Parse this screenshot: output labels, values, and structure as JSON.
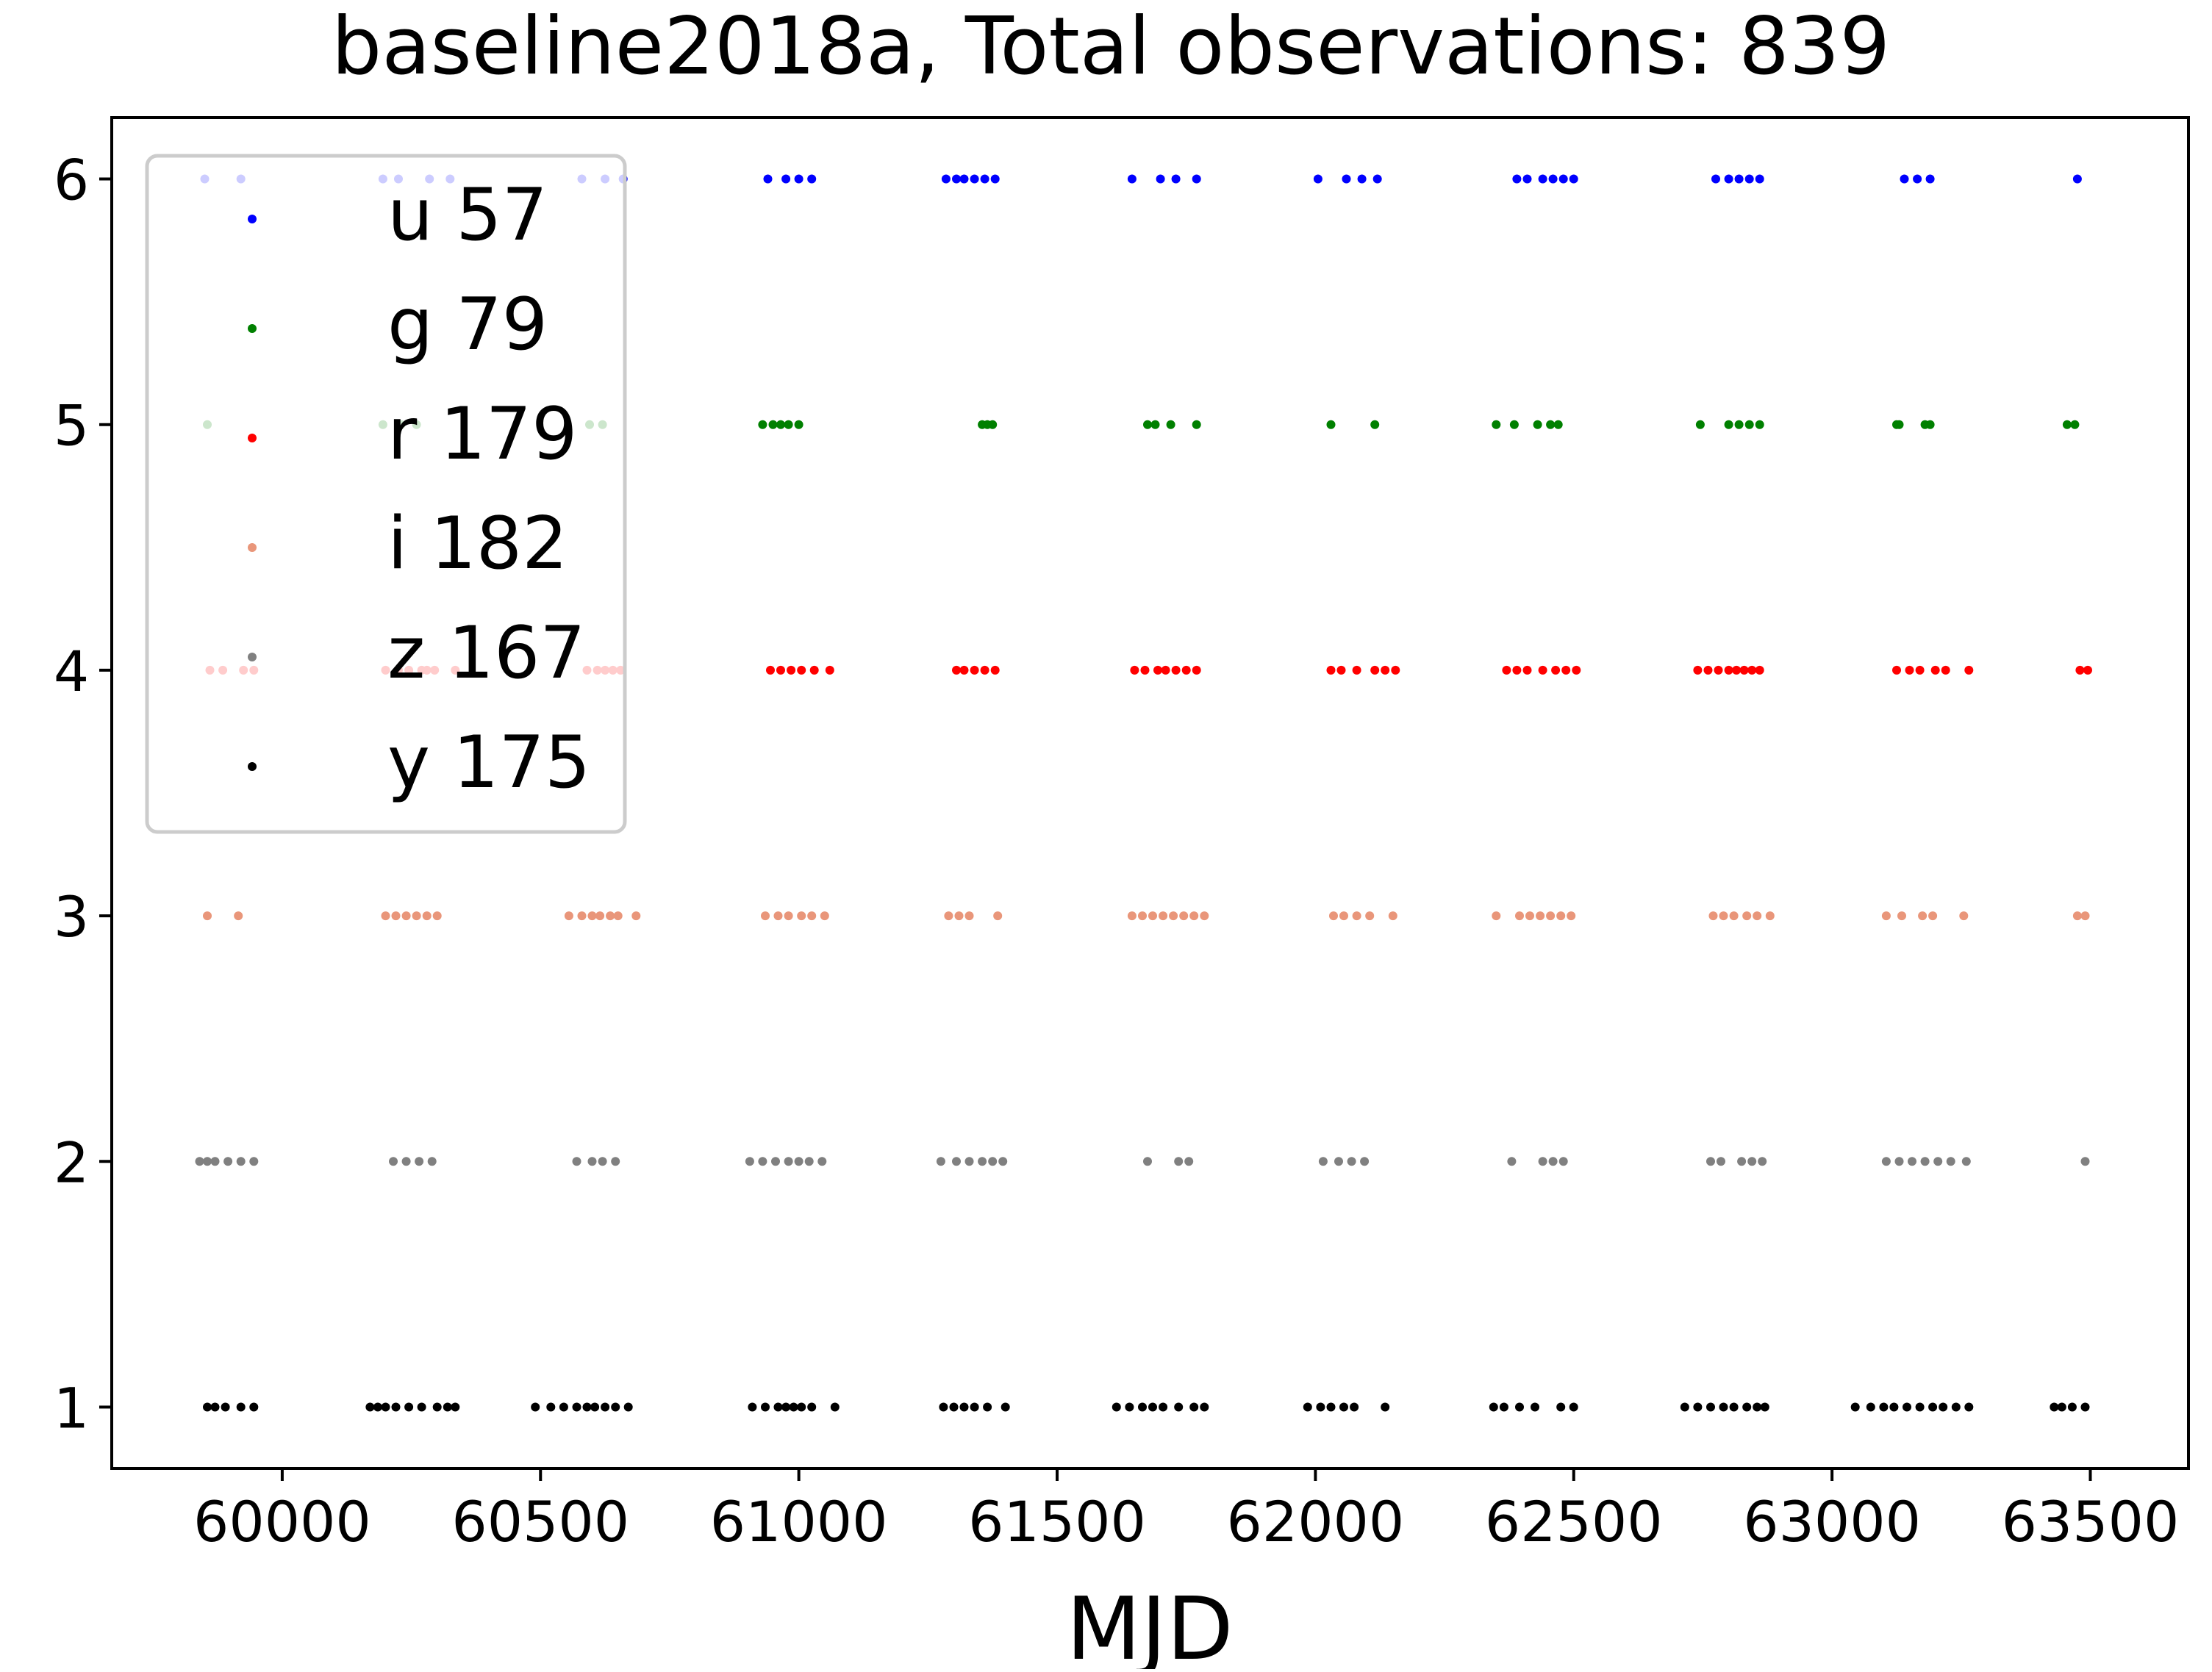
{
  "chart_data": {
    "type": "scatter",
    "title": "baseline2018a, Total observations: 839",
    "xlabel": "MJD",
    "ylabel": "",
    "xlim": [
      59670,
      63690
    ],
    "ylim": [
      0.75,
      6.25
    ],
    "x_ticks": [
      60000,
      60500,
      61000,
      61500,
      62000,
      62500,
      63000,
      63500
    ],
    "y_ticks": [
      1,
      2,
      3,
      4,
      5,
      6
    ],
    "grid": false,
    "legend_position": "upper-left",
    "series": [
      {
        "name": "u 57",
        "filter": "u",
        "count": 57,
        "color": "#0000ff",
        "y": 6,
        "x": [
          59850,
          59920,
          60195,
          60225,
          60285,
          60325,
          60580,
          60625,
          60660,
          60940,
          60975,
          61000,
          61025,
          61285,
          61305,
          61320,
          61340,
          61360,
          61380,
          61645,
          61700,
          61730,
          61770,
          62005,
          62060,
          62090,
          62120,
          62390,
          62410,
          62440,
          62460,
          62480,
          62500,
          62775,
          62800,
          62820,
          62840,
          62860,
          63140,
          63165,
          63190,
          63475
        ]
      },
      {
        "name": "g 79",
        "filter": "g",
        "count": 79,
        "color": "#008000",
        "y": 5,
        "x": [
          59855,
          60195,
          60230,
          60260,
          60595,
          60620,
          60930,
          60950,
          60965,
          60980,
          61000,
          61355,
          61365,
          61375,
          61675,
          61690,
          61720,
          61770,
          62030,
          62115,
          62350,
          62385,
          62430,
          62455,
          62470,
          62745,
          62800,
          62820,
          62840,
          62860,
          63125,
          63130,
          63180,
          63190,
          63455,
          63470
        ]
      },
      {
        "name": "r 179",
        "filter": "r",
        "count": 179,
        "color": "#ff0000",
        "y": 4,
        "x": [
          59860,
          59885,
          59925,
          59945,
          60200,
          60225,
          60245,
          60270,
          60280,
          60295,
          60335,
          60590,
          60610,
          60625,
          60640,
          60655,
          60945,
          60965,
          60985,
          61005,
          61030,
          61060,
          61305,
          61320,
          61340,
          61360,
          61380,
          61650,
          61670,
          61695,
          61710,
          61730,
          61750,
          61770,
          62030,
          62050,
          62080,
          62115,
          62135,
          62155,
          62370,
          62390,
          62410,
          62440,
          62465,
          62485,
          62505,
          62740,
          62760,
          62780,
          62800,
          62815,
          62830,
          62845,
          62860,
          63125,
          63150,
          63170,
          63200,
          63220,
          63265,
          63480,
          63495
        ]
      },
      {
        "name": "i 182",
        "filter": "i",
        "count": 182,
        "color": "#e9967a",
        "y": 3,
        "x": [
          59855,
          59915,
          60200,
          60220,
          60240,
          60260,
          60280,
          60300,
          60555,
          60580,
          60600,
          60615,
          60635,
          60650,
          60685,
          60935,
          60960,
          60980,
          61005,
          61025,
          61050,
          61290,
          61310,
          61330,
          61385,
          61645,
          61665,
          61685,
          61705,
          61725,
          61745,
          61765,
          61785,
          62035,
          62055,
          62080,
          62105,
          62150,
          62350,
          62395,
          62415,
          62435,
          62455,
          62475,
          62495,
          62770,
          62790,
          62810,
          62835,
          62855,
          62880,
          63105,
          63135,
          63175,
          63195,
          63255,
          63475,
          63490
        ]
      },
      {
        "name": "z 167",
        "filter": "z",
        "count": 167,
        "color": "#808080",
        "y": 2,
        "x": [
          59840,
          59855,
          59870,
          59895,
          59920,
          59945,
          60215,
          60240,
          60265,
          60290,
          60570,
          60600,
          60620,
          60645,
          60905,
          60930,
          60955,
          60980,
          61000,
          61020,
          61045,
          61275,
          61305,
          61330,
          61355,
          61375,
          61395,
          61675,
          61735,
          61755,
          62015,
          62045,
          62070,
          62095,
          62380,
          62440,
          62460,
          62480,
          62765,
          62785,
          62825,
          62845,
          62865,
          63105,
          63130,
          63155,
          63180,
          63205,
          63230,
          63260,
          63490
        ]
      },
      {
        "name": "y 175",
        "filter": "y",
        "count": 175,
        "color": "#000000",
        "y": 1,
        "x": [
          59855,
          59870,
          59890,
          59920,
          59945,
          60170,
          60185,
          60200,
          60220,
          60245,
          60270,
          60300,
          60320,
          60335,
          60490,
          60520,
          60545,
          60570,
          60590,
          60605,
          60625,
          60645,
          60670,
          60910,
          60935,
          60960,
          60975,
          60990,
          61005,
          61025,
          61070,
          61280,
          61300,
          61320,
          61340,
          61365,
          61400,
          61615,
          61640,
          61665,
          61685,
          61705,
          61735,
          61765,
          61785,
          61985,
          62010,
          62030,
          62055,
          62075,
          62135,
          62345,
          62365,
          62395,
          62425,
          62475,
          62500,
          62715,
          62740,
          62765,
          62790,
          62810,
          62835,
          62855,
          62870,
          63045,
          63075,
          63100,
          63120,
          63145,
          63170,
          63195,
          63215,
          63240,
          63265,
          63430,
          63445,
          63465,
          63490
        ]
      }
    ]
  }
}
